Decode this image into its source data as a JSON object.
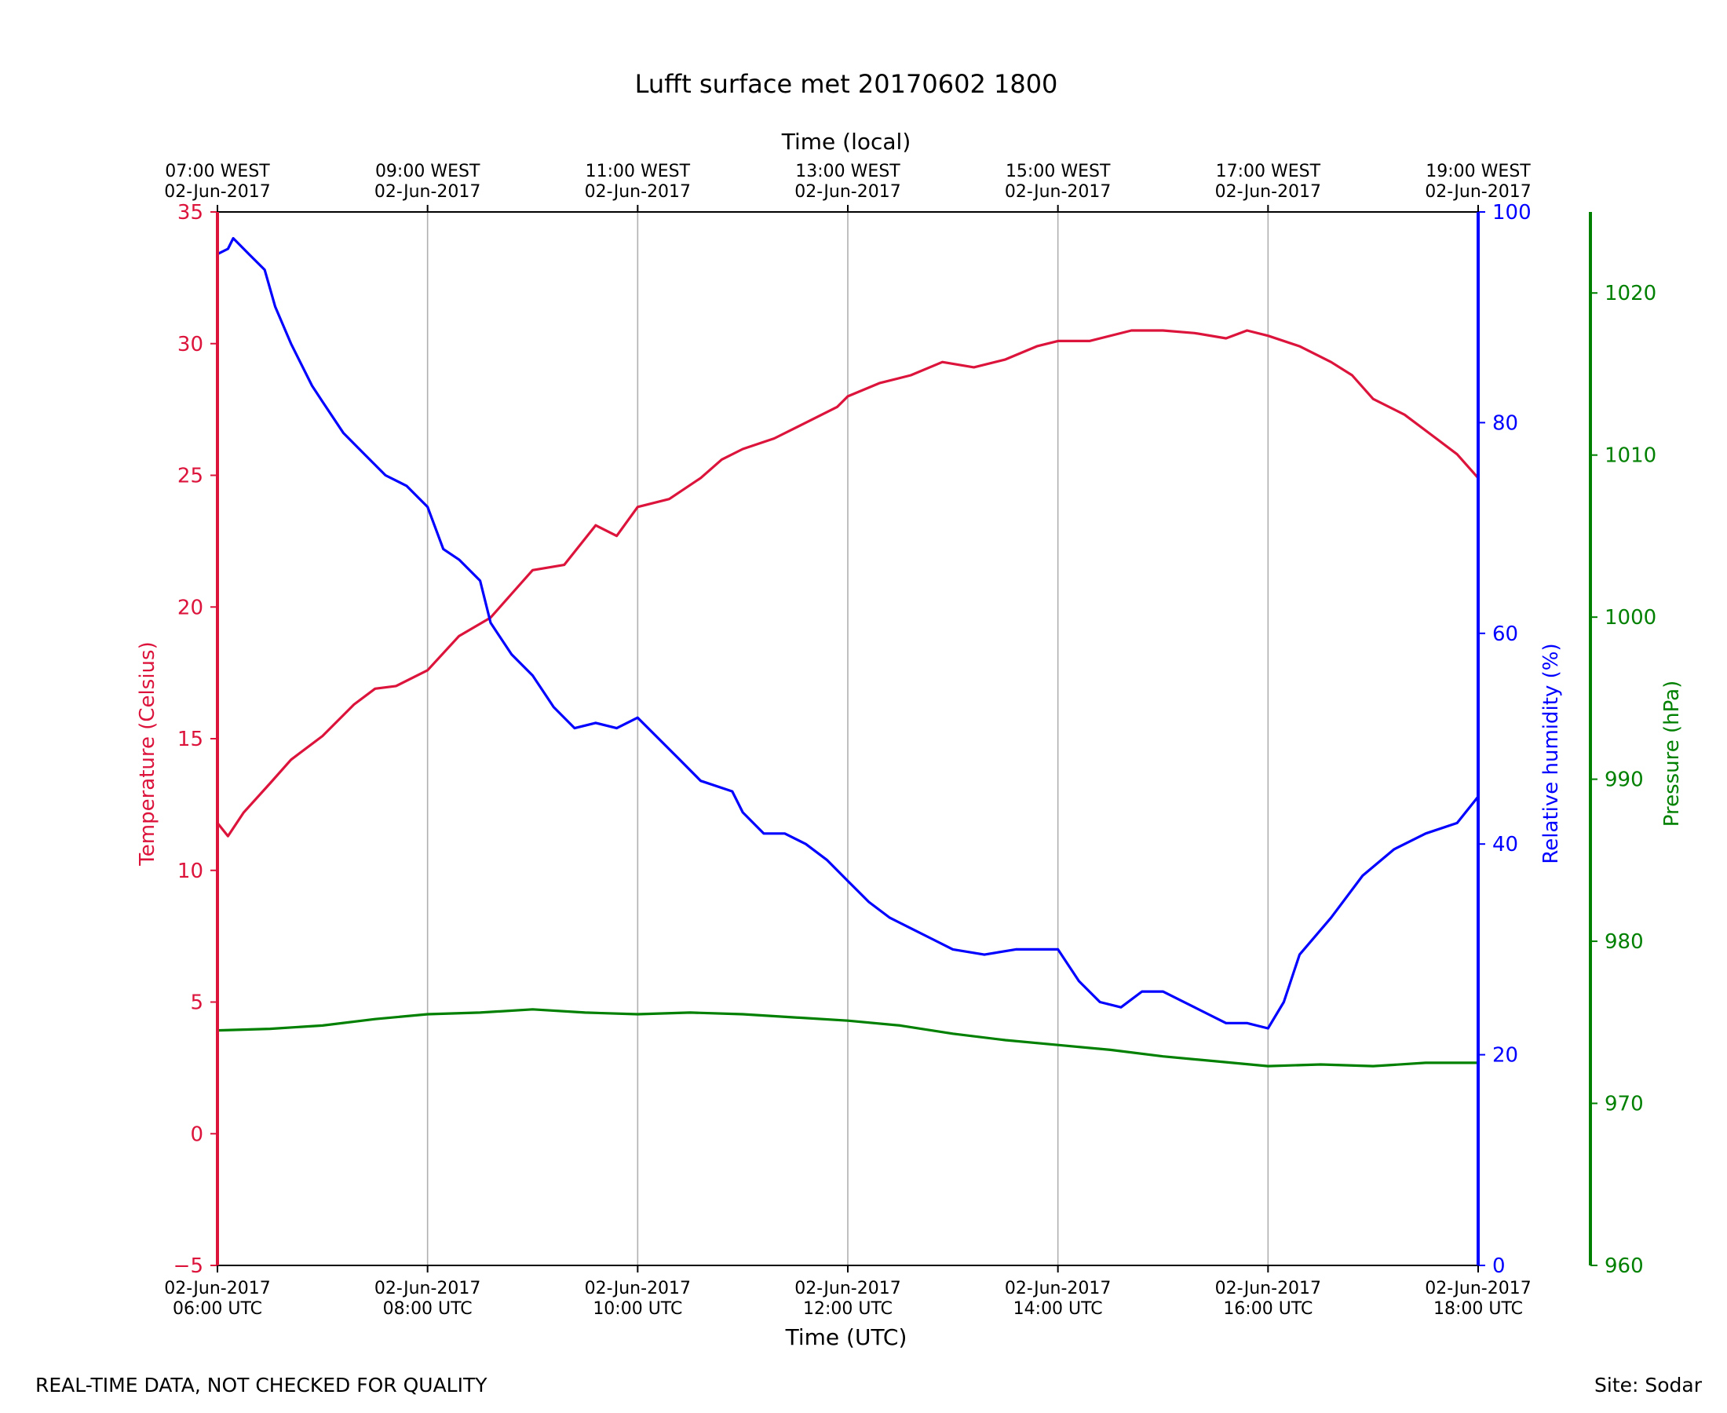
{
  "chart_data": {
    "type": "line",
    "title": "Lufft surface met 20170602 1800",
    "x_unit": "hours UTC, 02-Jun-2017",
    "xlim": [
      6,
      18
    ],
    "bottom_axis": {
      "label": "Time (UTC)",
      "ticks": [
        {
          "value": 6,
          "line1": "02-Jun-2017",
          "line2": "06:00 UTC"
        },
        {
          "value": 8,
          "line1": "02-Jun-2017",
          "line2": "08:00 UTC"
        },
        {
          "value": 10,
          "line1": "02-Jun-2017",
          "line2": "10:00 UTC"
        },
        {
          "value": 12,
          "line1": "02-Jun-2017",
          "line2": "12:00 UTC"
        },
        {
          "value": 14,
          "line1": "02-Jun-2017",
          "line2": "14:00 UTC"
        },
        {
          "value": 16,
          "line1": "02-Jun-2017",
          "line2": "16:00 UTC"
        },
        {
          "value": 18,
          "line1": "02-Jun-2017",
          "line2": "18:00 UTC"
        }
      ]
    },
    "top_axis": {
      "label": "Time (local)",
      "ticks": [
        {
          "value": 6,
          "line1": "07:00 WEST",
          "line2": "02-Jun-2017"
        },
        {
          "value": 8,
          "line1": "09:00 WEST",
          "line2": "02-Jun-2017"
        },
        {
          "value": 10,
          "line1": "11:00 WEST",
          "line2": "02-Jun-2017"
        },
        {
          "value": 12,
          "line1": "13:00 WEST",
          "line2": "02-Jun-2017"
        },
        {
          "value": 14,
          "line1": "15:00 WEST",
          "line2": "02-Jun-2017"
        },
        {
          "value": 16,
          "line1": "17:00 WEST",
          "line2": "02-Jun-2017"
        },
        {
          "value": 18,
          "line1": "19:00 WEST",
          "line2": "02-Jun-2017"
        }
      ]
    },
    "grid": "vertical",
    "axes": {
      "temperature": {
        "label": "Temperature (Celsius)",
        "ylim": [
          -5,
          35
        ],
        "ticks": [
          -5,
          0,
          5,
          10,
          15,
          20,
          25,
          30,
          35
        ],
        "color": "#dc143c",
        "side": "left"
      },
      "humidity": {
        "label": "Relative humidity (%)",
        "ylim": [
          0,
          100
        ],
        "ticks": [
          0,
          20,
          40,
          60,
          80,
          100
        ],
        "color": "#0000ff",
        "side": "right"
      },
      "pressure": {
        "label": "Pressure (hPa)",
        "ylim": [
          960,
          1025
        ],
        "ticks": [
          960,
          970,
          980,
          990,
          1000,
          1010,
          1020
        ],
        "color": "#008000",
        "side": "right-outer"
      }
    },
    "series": [
      {
        "axis": "temperature",
        "color": "#dc143c",
        "x": [
          6.0,
          6.1,
          6.25,
          6.5,
          6.7,
          7.0,
          7.3,
          7.5,
          7.7,
          8.0,
          8.3,
          8.6,
          8.8,
          9.0,
          9.3,
          9.6,
          9.8,
          10.0,
          10.3,
          10.6,
          10.8,
          11.0,
          11.3,
          11.6,
          11.9,
          12.0,
          12.3,
          12.6,
          12.9,
          13.2,
          13.5,
          13.8,
          14.0,
          14.3,
          14.7,
          15.0,
          15.3,
          15.6,
          15.8,
          16.0,
          16.3,
          16.6,
          16.8,
          17.0,
          17.3,
          17.6,
          17.8,
          18.0
        ],
        "y": [
          11.8,
          11.3,
          12.2,
          13.3,
          14.2,
          15.1,
          16.3,
          16.9,
          17.0,
          17.6,
          18.9,
          19.6,
          20.5,
          21.4,
          21.6,
          23.1,
          22.7,
          23.8,
          24.1,
          24.9,
          25.6,
          26.0,
          26.4,
          27.0,
          27.6,
          28.0,
          28.5,
          28.8,
          29.3,
          29.1,
          29.4,
          29.9,
          30.1,
          30.1,
          30.5,
          30.5,
          30.4,
          30.2,
          30.5,
          30.3,
          29.9,
          29.3,
          28.8,
          27.9,
          27.3,
          26.4,
          25.8,
          24.9
        ]
      },
      {
        "axis": "humidity",
        "color": "#0000ff",
        "x": [
          6.0,
          6.1,
          6.15,
          6.3,
          6.45,
          6.55,
          6.7,
          6.9,
          7.0,
          7.2,
          7.4,
          7.6,
          7.8,
          8.0,
          8.15,
          8.3,
          8.5,
          8.6,
          8.8,
          9.0,
          9.2,
          9.4,
          9.6,
          9.8,
          10.0,
          10.2,
          10.4,
          10.6,
          10.9,
          11.0,
          11.2,
          11.4,
          11.6,
          11.8,
          12.0,
          12.2,
          12.4,
          12.6,
          12.8,
          13.0,
          13.3,
          13.6,
          14.0,
          14.2,
          14.4,
          14.6,
          14.8,
          15.0,
          15.3,
          15.6,
          15.8,
          16.0,
          16.15,
          16.3,
          16.6,
          16.9,
          17.2,
          17.5,
          17.8,
          18.0
        ],
        "y": [
          96,
          96.5,
          97.5,
          96,
          94.5,
          91,
          87.5,
          83.5,
          82,
          79,
          77,
          75,
          74,
          72,
          68,
          67,
          65,
          61,
          58,
          56,
          53,
          51,
          51.5,
          51,
          52,
          50,
          48,
          46,
          45,
          43,
          41,
          41,
          40,
          38.5,
          36.5,
          34.5,
          33,
          32,
          31,
          30,
          29.5,
          30,
          30,
          27,
          25,
          24.5,
          26,
          26,
          24.5,
          23,
          23,
          22.5,
          25,
          29.5,
          33,
          37,
          39.5,
          41,
          42,
          44.5
        ]
      },
      {
        "axis": "pressure",
        "color": "#008000",
        "x": [
          6.0,
          6.5,
          7.0,
          7.5,
          8.0,
          8.5,
          9.0,
          9.5,
          10.0,
          10.5,
          11.0,
          11.5,
          12.0,
          12.5,
          13.0,
          13.5,
          14.0,
          14.5,
          15.0,
          15.5,
          16.0,
          16.5,
          17.0,
          17.5,
          18.0
        ],
        "y": [
          974.5,
          974.6,
          974.8,
          975.2,
          975.5,
          975.6,
          975.8,
          975.6,
          975.5,
          975.6,
          975.5,
          975.3,
          975.1,
          974.8,
          974.3,
          973.9,
          973.6,
          973.3,
          972.9,
          972.6,
          972.3,
          972.4,
          972.3,
          972.5,
          972.5
        ]
      }
    ]
  },
  "footer": {
    "left": "REAL-TIME DATA, NOT CHECKED FOR QUALITY",
    "right": "Site: Sodar"
  }
}
